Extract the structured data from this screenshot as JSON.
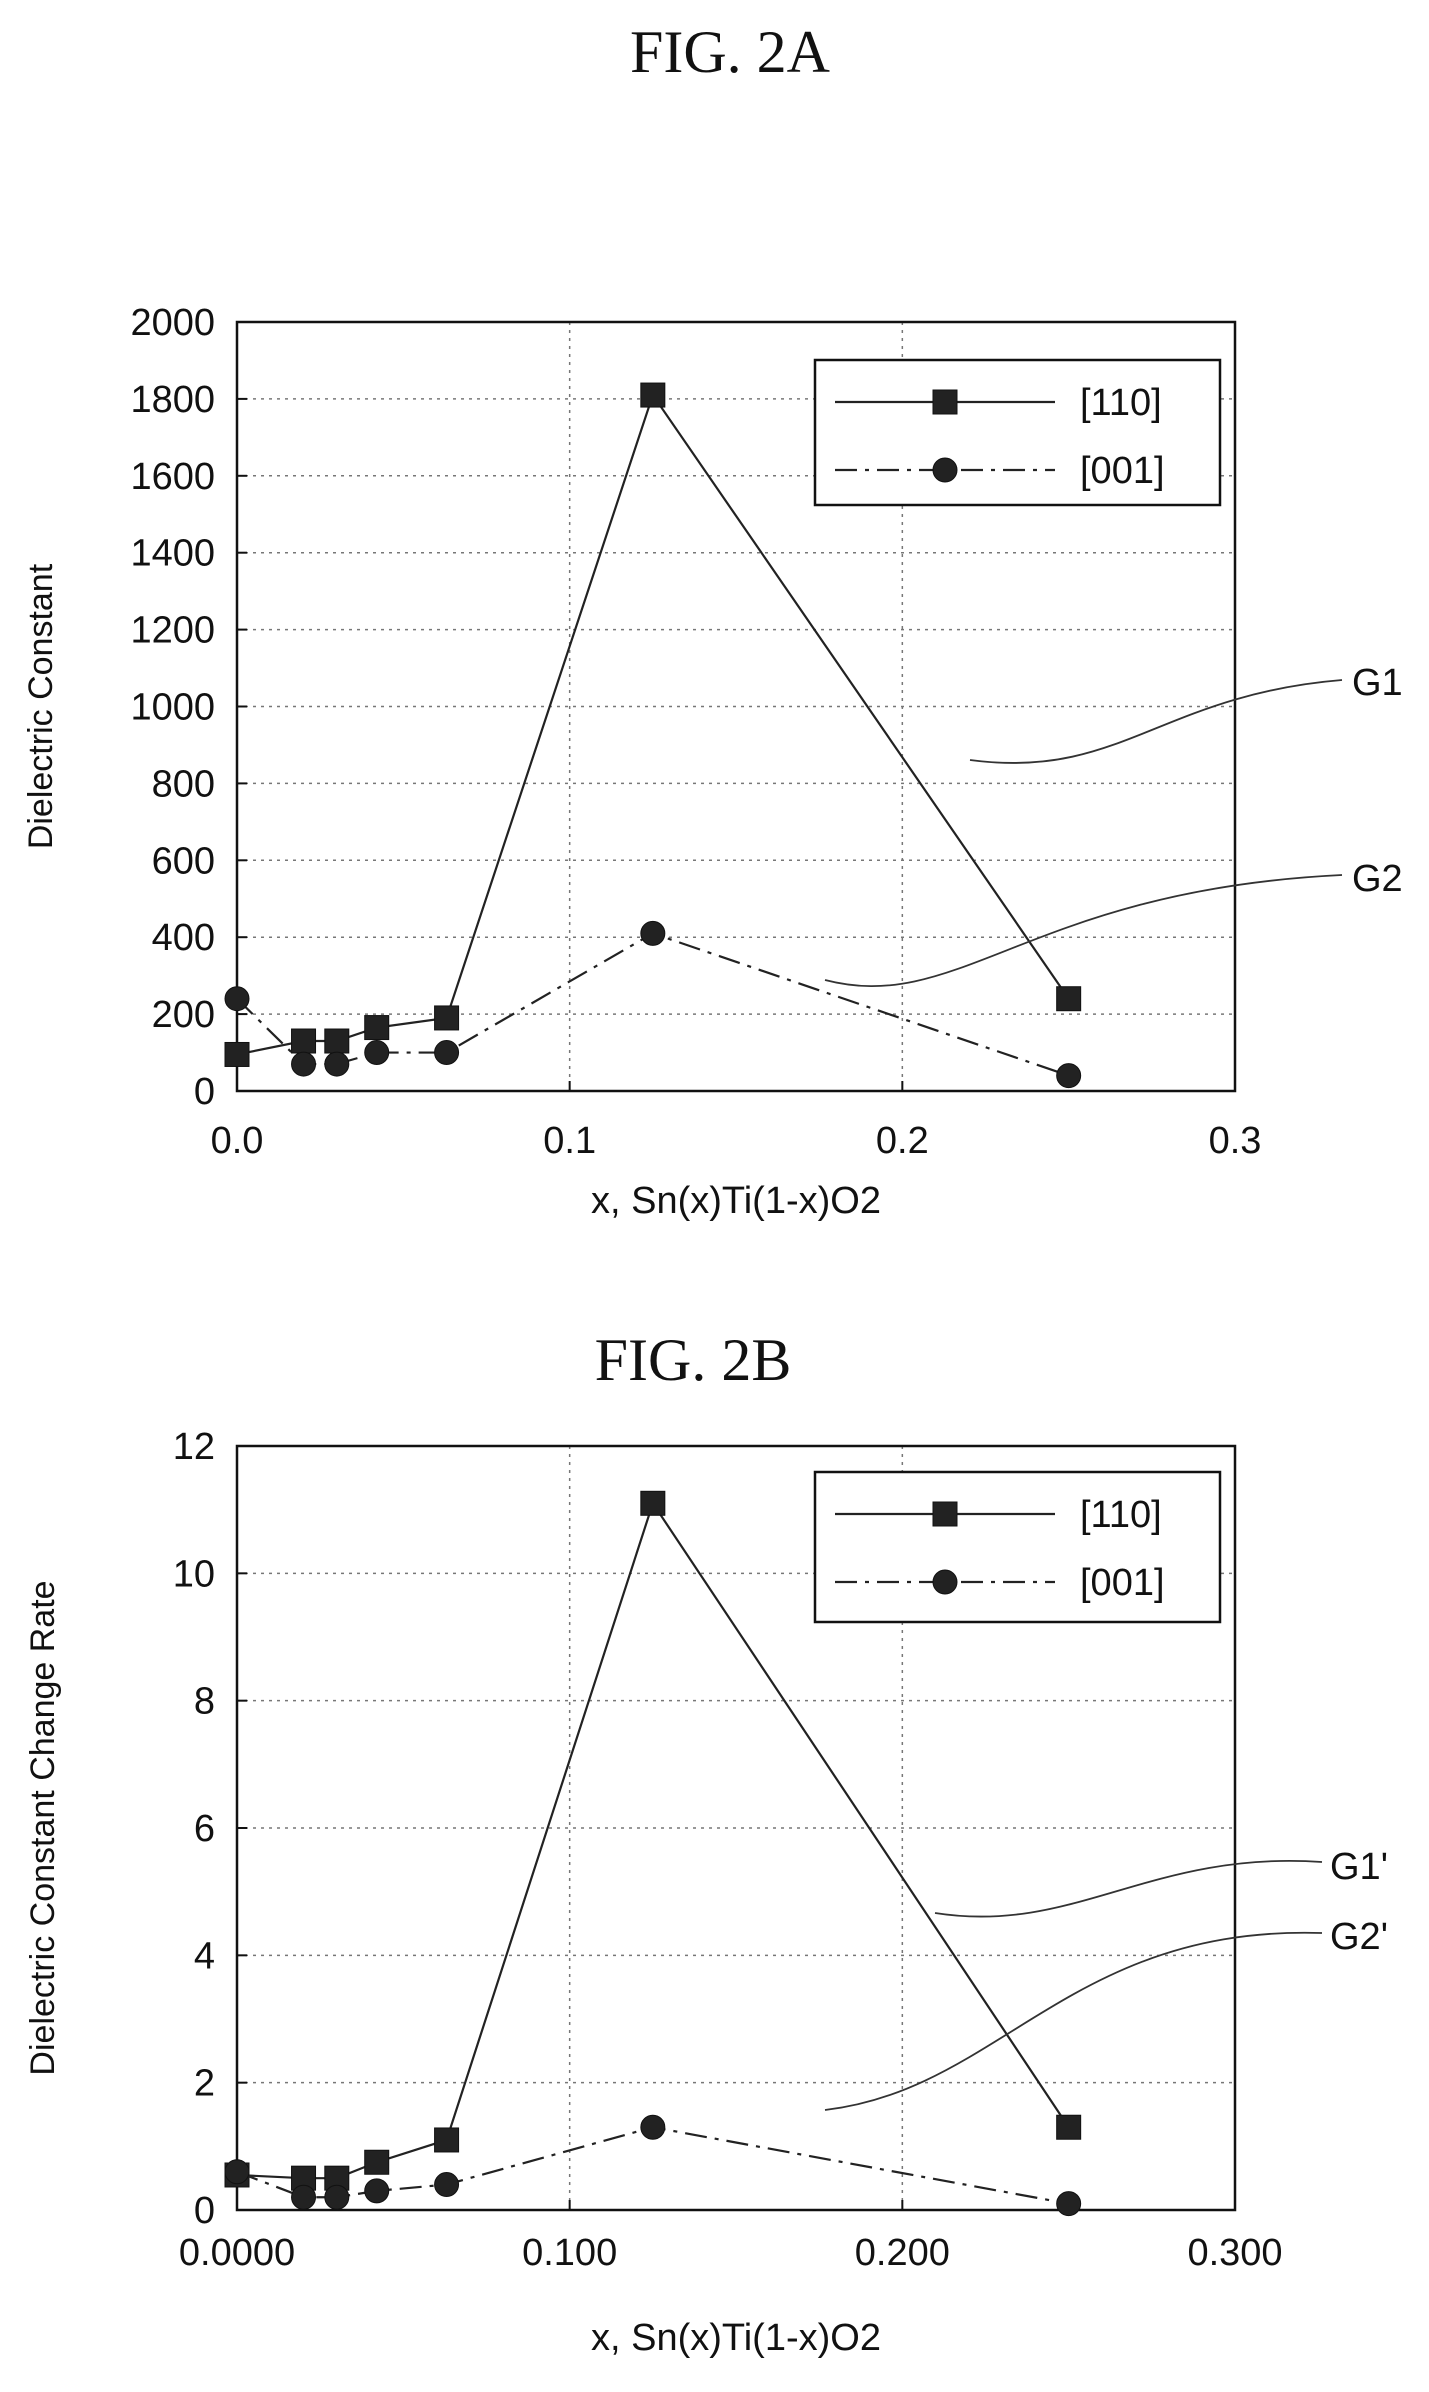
{
  "chart_data": [
    {
      "type": "line",
      "figure_label": "FIG.  2A",
      "xlabel": "x, Sn(x)Ti(1-x)O2",
      "ylabel": "Dielectric Constant",
      "xlim": [
        0,
        0.3
      ],
      "ylim": [
        0,
        2000
      ],
      "x_ticks": [
        0.0,
        0.1,
        0.2,
        0.3
      ],
      "x_tick_labels": [
        "0.0",
        "0.1",
        "0.2",
        "0.3"
      ],
      "y_ticks": [
        0,
        200,
        400,
        600,
        800,
        1000,
        1200,
        1400,
        1600,
        1800,
        2000
      ],
      "y_tick_labels": [
        "0",
        "200",
        "400",
        "600",
        "800",
        "1000",
        "1200",
        "1400",
        "1600",
        "1800",
        "2000"
      ],
      "grid": true,
      "legend_position": "top-right",
      "series": [
        {
          "name": "[110]",
          "marker": "square",
          "line_style": "solid",
          "x": [
            0.0,
            0.02,
            0.03,
            0.042,
            0.063,
            0.125,
            0.25
          ],
          "y": [
            95,
            130,
            130,
            165,
            190,
            1810,
            240
          ]
        },
        {
          "name": "[001]",
          "marker": "circle",
          "line_style": "dash-dot",
          "x": [
            0.0,
            0.02,
            0.03,
            0.042,
            0.063,
            0.125,
            0.25
          ],
          "y": [
            240,
            70,
            70,
            100,
            100,
            410,
            40
          ]
        }
      ],
      "callouts": [
        {
          "label": "G1",
          "series": 0
        },
        {
          "label": "G2",
          "series": 1
        }
      ]
    },
    {
      "type": "line",
      "figure_label": "FIG. 2B",
      "xlabel": "x, Sn(x)Ti(1-x)O2",
      "ylabel": "Dielectric Constant Change Rate",
      "xlim": [
        0,
        0.3
      ],
      "ylim": [
        0,
        12
      ],
      "x_ticks": [
        0.0,
        0.1,
        0.2,
        0.3
      ],
      "x_tick_labels": [
        "0.0000",
        "0.100",
        "0.200",
        "0.300"
      ],
      "y_ticks": [
        0,
        2,
        4,
        6,
        8,
        10,
        12
      ],
      "y_tick_labels": [
        "0",
        "2",
        "4",
        "6",
        "8",
        "10",
        "12"
      ],
      "grid": true,
      "legend_position": "top-right",
      "series": [
        {
          "name": "[110]",
          "marker": "square",
          "line_style": "solid",
          "x": [
            0.0,
            0.02,
            0.03,
            0.042,
            0.063,
            0.125,
            0.25
          ],
          "y": [
            0.55,
            0.5,
            0.5,
            0.75,
            1.1,
            11.1,
            1.3
          ]
        },
        {
          "name": "[001]",
          "marker": "circle",
          "line_style": "dash-dot",
          "x": [
            0.0,
            0.02,
            0.03,
            0.042,
            0.063,
            0.125,
            0.25
          ],
          "y": [
            0.6,
            0.2,
            0.2,
            0.3,
            0.4,
            1.3,
            0.1
          ]
        }
      ],
      "callouts": [
        {
          "label": "G1'",
          "series": 0
        },
        {
          "label": "G2'",
          "series": 1
        }
      ]
    }
  ]
}
